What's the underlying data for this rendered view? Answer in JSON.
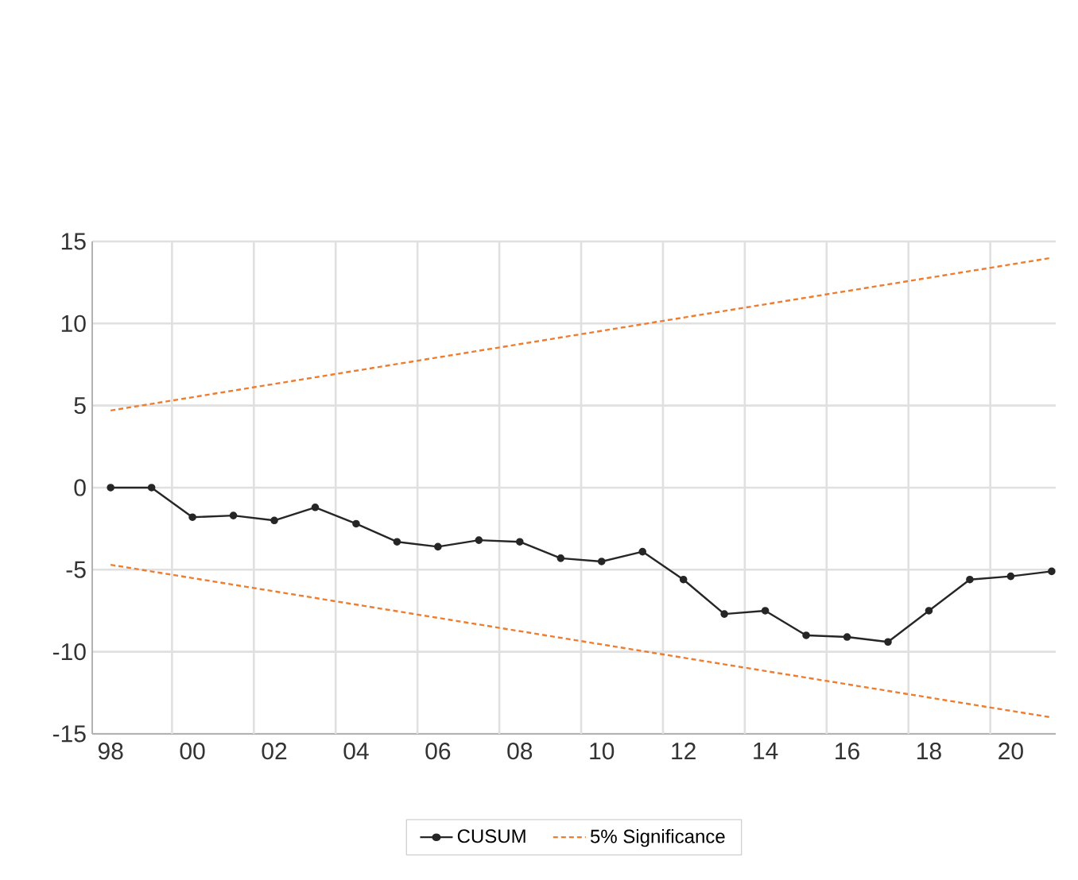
{
  "chart_data": {
    "type": "line",
    "categories": [
      "98",
      null,
      "00",
      null,
      "02",
      null,
      "04",
      null,
      "06",
      null,
      "08",
      null,
      "10",
      null,
      "12",
      null,
      "14",
      null,
      "16",
      null,
      "18",
      null,
      "20",
      null
    ],
    "series": [
      {
        "name": "CUSUM",
        "color": "#262626",
        "marker": "circle",
        "line_style": "solid",
        "values": [
          0,
          0,
          -1.8,
          -1.7,
          -2.0,
          -1.2,
          -2.2,
          -3.3,
          -3.6,
          -3.2,
          -3.3,
          -4.3,
          -4.5,
          -3.9,
          -5.6,
          -7.7,
          -7.5,
          -9.0,
          -9.1,
          -9.4,
          -7.5,
          -5.6,
          -5.4,
          -5.1
        ]
      },
      {
        "name": "5% Significance",
        "color": "#ed7d31",
        "marker": "none",
        "line_style": "dashed",
        "values": [
          4.7,
          null,
          null,
          null,
          null,
          null,
          null,
          null,
          null,
          null,
          null,
          null,
          null,
          null,
          null,
          null,
          null,
          null,
          null,
          null,
          null,
          null,
          null,
          14.0
        ]
      },
      {
        "color": "#ed7d31",
        "marker": "none",
        "line_style": "dashed",
        "values": [
          -4.7,
          null,
          null,
          null,
          null,
          null,
          null,
          null,
          null,
          null,
          null,
          null,
          null,
          null,
          null,
          null,
          null,
          null,
          null,
          null,
          null,
          null,
          null,
          -14.0
        ]
      }
    ],
    "ylim": [
      -15,
      15
    ],
    "yticks": [
      -15,
      -10,
      -5,
      0,
      5,
      10,
      15
    ],
    "grid": true,
    "legend": "bottom"
  }
}
